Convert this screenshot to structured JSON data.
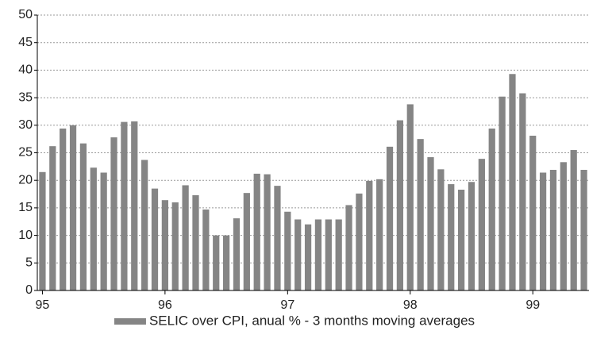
{
  "chart_data": {
    "type": "bar",
    "categories": [
      "95",
      null,
      null,
      null,
      null,
      null,
      null,
      null,
      null,
      null,
      null,
      null,
      "96",
      null,
      null,
      null,
      null,
      null,
      null,
      null,
      null,
      null,
      null,
      null,
      "97",
      null,
      null,
      null,
      null,
      null,
      null,
      null,
      null,
      null,
      null,
      null,
      "98",
      null,
      null,
      null,
      null,
      null,
      null,
      null,
      null,
      null,
      null,
      null,
      "99",
      null,
      null,
      null,
      null,
      null
    ],
    "series": [
      {
        "name": "SELIC over CPI, anual % - 3 months moving averages",
        "color": "#858585",
        "values": [
          21.5,
          26.2,
          29.4,
          30.0,
          26.7,
          22.3,
          21.4,
          27.8,
          30.6,
          30.7,
          23.7,
          18.5,
          16.4,
          16.0,
          19.1,
          17.3,
          14.7,
          10.0,
          10.0,
          13.1,
          17.7,
          21.2,
          21.1,
          19.0,
          14.3,
          12.9,
          12.0,
          12.9,
          12.9,
          12.9,
          15.5,
          17.6,
          19.9,
          20.2,
          26.1,
          30.9,
          33.8,
          27.5,
          24.2,
          22.0,
          19.3,
          18.3,
          19.7,
          23.9,
          29.4,
          35.2,
          39.3,
          35.8,
          28.1,
          21.4,
          21.9,
          23.3,
          25.5,
          21.9
        ]
      }
    ],
    "ylim": [
      0,
      50
    ],
    "yticks": [
      0,
      5,
      10,
      15,
      20,
      25,
      30,
      35,
      40,
      45,
      50
    ],
    "grid": true,
    "legend": "bottom"
  }
}
